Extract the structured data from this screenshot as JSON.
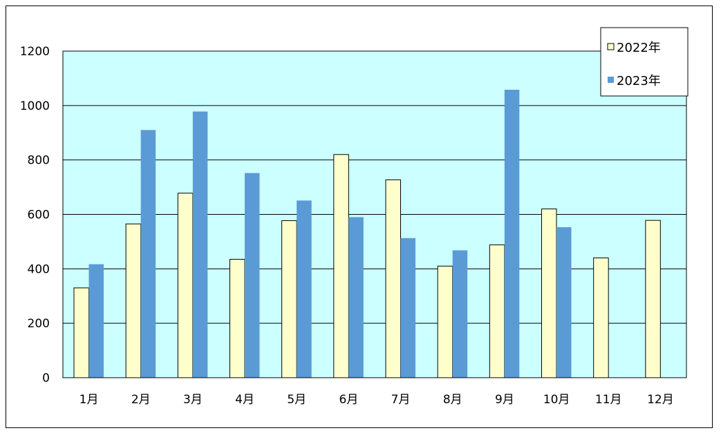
{
  "chart_data": {
    "type": "bar",
    "categories": [
      "1月",
      "2月",
      "3月",
      "4月",
      "5月",
      "6月",
      "7月",
      "8月",
      "9月",
      "10月",
      "11月",
      "12月"
    ],
    "series": [
      {
        "name": "2022年",
        "values": [
          330,
          565,
          678,
          435,
          577,
          820,
          727,
          410,
          488,
          620,
          440,
          578
        ]
      },
      {
        "name": "2023年",
        "values": [
          417,
          910,
          978,
          752,
          651,
          590,
          513,
          468,
          1058,
          553,
          null,
          null
        ]
      }
    ],
    "y_ticks": [
      "0",
      "200",
      "400",
      "600",
      "800",
      "1000",
      "1200"
    ],
    "ylim": [
      0,
      1200
    ],
    "grid": true,
    "legend_position": "top-right",
    "colors": {
      "plot_background": "#ccffff",
      "series_2022": "#ffffcc",
      "series_2023": "#5b9bd5",
      "gridline": "#000000"
    }
  }
}
